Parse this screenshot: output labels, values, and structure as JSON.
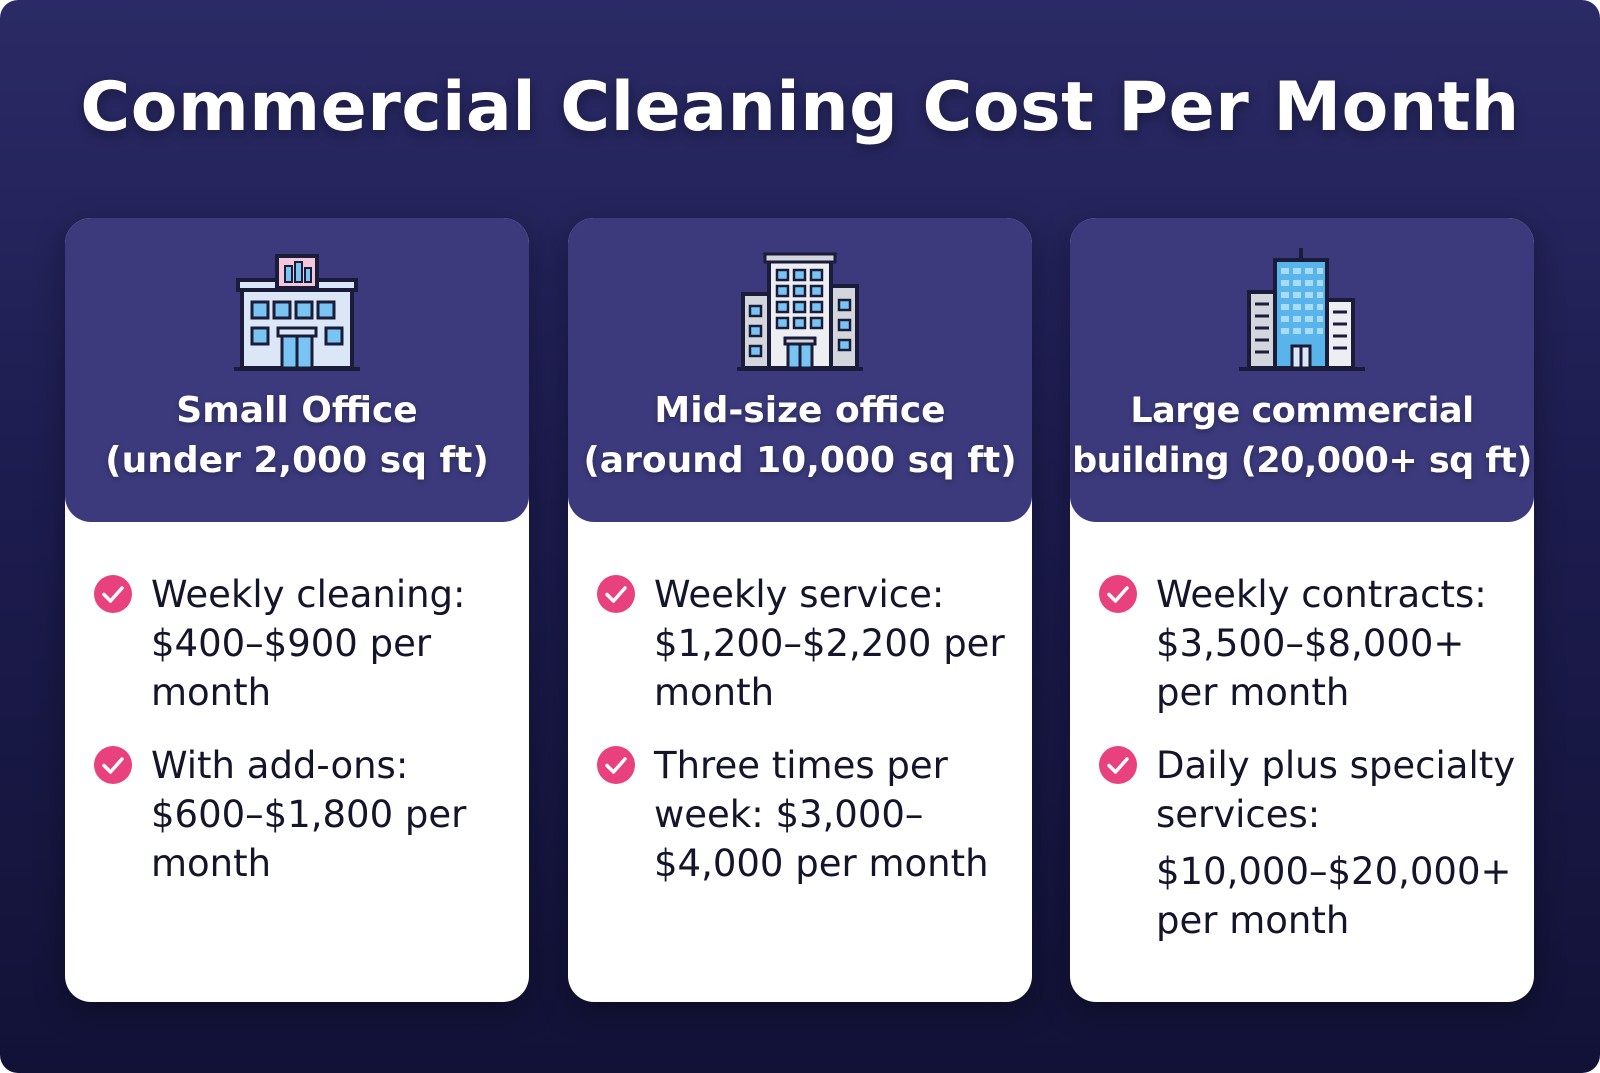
{
  "title": "Commercial Cleaning Cost Per Month",
  "colors": {
    "background_top": "#2b2a66",
    "background_bottom": "#121237",
    "card_header": "#3c3a7c",
    "check": "#e8417e"
  },
  "cards": [
    {
      "icon": "small-office-building-icon",
      "title_line1": "Small Office",
      "title_line2": "(under 2,000 sq ft)",
      "items": [
        {
          "icon": "check-icon",
          "line1": "Weekly cleaning:",
          "line2": "$400–$900 per",
          "line3": "month"
        },
        {
          "icon": "check-icon",
          "line1": "With add-ons:",
          "line2": "$600–$1,800 per",
          "line3": "month"
        }
      ]
    },
    {
      "icon": "mid-size-office-building-icon",
      "title_line1": "Mid-size office",
      "title_line2": "(around 10,000 sq ft)",
      "items": [
        {
          "icon": "check-icon",
          "line1": "Weekly service:",
          "line2": "$1,200–$2,200 per",
          "line3": "month"
        },
        {
          "icon": "check-icon",
          "line1": "Three times per",
          "line2": "week: $3,000–",
          "line3": "$4,000 per month"
        }
      ]
    },
    {
      "icon": "large-commercial-building-icon",
      "title_line1": "Large commercial",
      "title_line2": "building (20,000+ sq ft)",
      "items": [
        {
          "icon": "check-icon",
          "line1": "Weekly contracts:",
          "line2": "$3,500–$8,000+",
          "line3": "per month"
        },
        {
          "icon": "check-icon",
          "line1": "Daily plus specialty",
          "line2": "services:",
          "line3": "$10,000–$20,000+",
          "line4": "per month"
        }
      ]
    }
  ]
}
